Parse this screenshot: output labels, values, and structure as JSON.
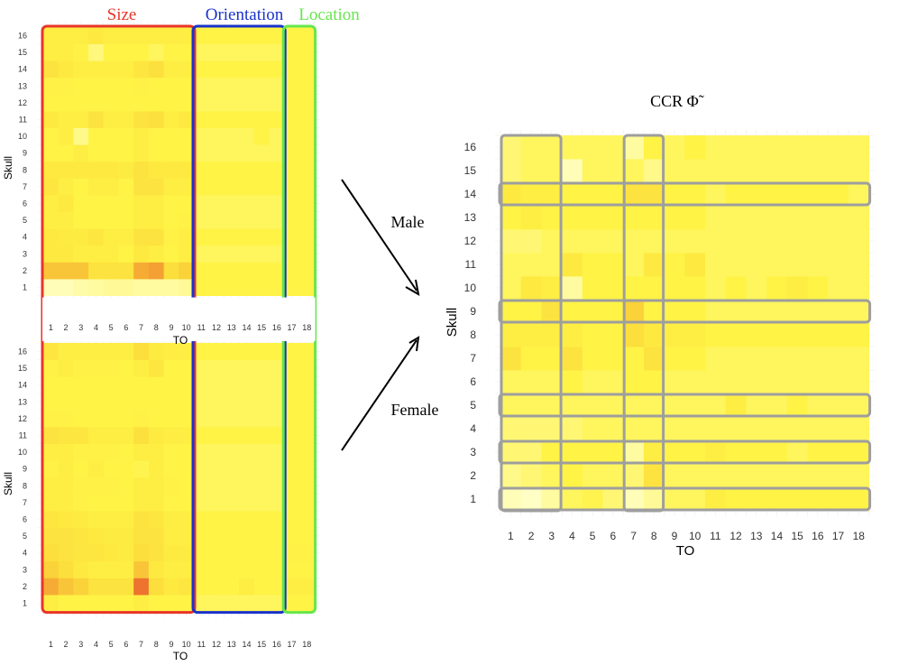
{
  "chart_data": [
    {
      "type": "heatmap",
      "panel": "Male",
      "xlabel": "TO",
      "ylabel": "Skull",
      "x_ticks": [
        "1",
        "2",
        "3",
        "4",
        "5",
        "6",
        "7",
        "8",
        "9",
        "10",
        "11",
        "12",
        "13",
        "14",
        "15",
        "16",
        "17",
        "18"
      ],
      "y_ticks": [
        "1",
        "2",
        "3",
        "4",
        "5",
        "6",
        "7",
        "8",
        "9",
        "10",
        "11",
        "12",
        "13",
        "14",
        "15",
        "16"
      ],
      "groups": [
        {
          "label": "Size",
          "from": 1,
          "to": 10,
          "color": "#e8352a"
        },
        {
          "label": "Orientation",
          "from": 11,
          "to": 16,
          "color": "#1a33cc"
        },
        {
          "label": "Location",
          "from": 17,
          "to": 18,
          "color": "#66e64d"
        }
      ],
      "scale": "0 = pale yellow, 1 = orange-red (estimated)",
      "values": [
        [
          0.05,
          0.05,
          0.08,
          0.1,
          0.12,
          0.12,
          0.1,
          0.1,
          0.1,
          0.12,
          0.3,
          0.3,
          0.3,
          0.3,
          0.3,
          0.3,
          0.3,
          0.3
        ],
        [
          0.6,
          0.6,
          0.6,
          0.45,
          0.45,
          0.45,
          0.7,
          0.75,
          0.5,
          0.55,
          0.3,
          0.3,
          0.3,
          0.3,
          0.3,
          0.3,
          0.3,
          0.3
        ],
        [
          0.4,
          0.4,
          0.35,
          0.35,
          0.35,
          0.3,
          0.4,
          0.35,
          0.3,
          0.35,
          0.25,
          0.25,
          0.25,
          0.25,
          0.25,
          0.25,
          0.3,
          0.3
        ],
        [
          0.4,
          0.38,
          0.38,
          0.42,
          0.35,
          0.35,
          0.45,
          0.45,
          0.32,
          0.35,
          0.3,
          0.3,
          0.3,
          0.3,
          0.3,
          0.3,
          0.3,
          0.3
        ],
        [
          0.35,
          0.35,
          0.3,
          0.3,
          0.3,
          0.3,
          0.35,
          0.35,
          0.3,
          0.32,
          0.25,
          0.25,
          0.25,
          0.25,
          0.25,
          0.25,
          0.3,
          0.3
        ],
        [
          0.35,
          0.4,
          0.3,
          0.3,
          0.3,
          0.3,
          0.35,
          0.35,
          0.3,
          0.3,
          0.25,
          0.25,
          0.25,
          0.25,
          0.25,
          0.25,
          0.3,
          0.3
        ],
        [
          0.42,
          0.35,
          0.3,
          0.35,
          0.35,
          0.3,
          0.45,
          0.45,
          0.35,
          0.35,
          0.3,
          0.3,
          0.3,
          0.3,
          0.3,
          0.3,
          0.3,
          0.3
        ],
        [
          0.4,
          0.4,
          0.4,
          0.4,
          0.4,
          0.38,
          0.45,
          0.4,
          0.4,
          0.4,
          0.3,
          0.3,
          0.3,
          0.3,
          0.3,
          0.3,
          0.3,
          0.3
        ],
        [
          0.3,
          0.3,
          0.35,
          0.3,
          0.3,
          0.3,
          0.35,
          0.3,
          0.3,
          0.3,
          0.25,
          0.25,
          0.25,
          0.25,
          0.25,
          0.25,
          0.3,
          0.3
        ],
        [
          0.3,
          0.35,
          0.15,
          0.3,
          0.3,
          0.3,
          0.35,
          0.3,
          0.3,
          0.3,
          0.25,
          0.25,
          0.25,
          0.25,
          0.3,
          0.25,
          0.3,
          0.3
        ],
        [
          0.4,
          0.35,
          0.35,
          0.45,
          0.35,
          0.35,
          0.45,
          0.48,
          0.35,
          0.4,
          0.3,
          0.3,
          0.3,
          0.3,
          0.3,
          0.3,
          0.3,
          0.3
        ],
        [
          0.3,
          0.3,
          0.3,
          0.3,
          0.3,
          0.3,
          0.3,
          0.3,
          0.3,
          0.3,
          0.25,
          0.25,
          0.25,
          0.25,
          0.25,
          0.25,
          0.3,
          0.3
        ],
        [
          0.32,
          0.32,
          0.3,
          0.3,
          0.3,
          0.3,
          0.32,
          0.3,
          0.3,
          0.3,
          0.25,
          0.25,
          0.25,
          0.25,
          0.25,
          0.25,
          0.3,
          0.3
        ],
        [
          0.45,
          0.4,
          0.35,
          0.35,
          0.35,
          0.35,
          0.42,
          0.48,
          0.35,
          0.35,
          0.3,
          0.3,
          0.3,
          0.3,
          0.3,
          0.3,
          0.3,
          0.3
        ],
        [
          0.35,
          0.35,
          0.32,
          0.18,
          0.3,
          0.3,
          0.3,
          0.25,
          0.3,
          0.3,
          0.25,
          0.25,
          0.25,
          0.25,
          0.25,
          0.25,
          0.3,
          0.3
        ],
        [
          0.35,
          0.35,
          0.35,
          0.4,
          0.35,
          0.35,
          0.35,
          0.35,
          0.35,
          0.35,
          0.3,
          0.3,
          0.3,
          0.3,
          0.3,
          0.3,
          0.3,
          0.3
        ]
      ]
    },
    {
      "type": "heatmap",
      "panel": "Female",
      "xlabel": "TO",
      "ylabel": "Skull",
      "x_ticks": [
        "1",
        "2",
        "3",
        "4",
        "5",
        "6",
        "7",
        "8",
        "9",
        "10",
        "11",
        "12",
        "13",
        "14",
        "15",
        "16",
        "17",
        "18"
      ],
      "y_ticks": [
        "1",
        "2",
        "3",
        "4",
        "5",
        "6",
        "7",
        "8",
        "9",
        "10",
        "11",
        "12",
        "13",
        "14",
        "15",
        "16"
      ],
      "scale": "0 = pale yellow, 1 = orange-red (estimated)",
      "values": [
        [
          0.35,
          0.3,
          0.3,
          0.3,
          0.3,
          0.3,
          0.35,
          0.3,
          0.3,
          0.3,
          0.25,
          0.25,
          0.25,
          0.25,
          0.25,
          0.25,
          0.3,
          0.3
        ],
        [
          0.7,
          0.6,
          0.55,
          0.45,
          0.45,
          0.45,
          0.9,
          0.5,
          0.4,
          0.42,
          0.3,
          0.3,
          0.3,
          0.35,
          0.3,
          0.3,
          0.35,
          0.35
        ],
        [
          0.55,
          0.5,
          0.4,
          0.35,
          0.35,
          0.35,
          0.6,
          0.4,
          0.35,
          0.35,
          0.3,
          0.3,
          0.3,
          0.3,
          0.3,
          0.3,
          0.3,
          0.3
        ],
        [
          0.5,
          0.45,
          0.42,
          0.42,
          0.4,
          0.38,
          0.5,
          0.45,
          0.38,
          0.38,
          0.3,
          0.3,
          0.3,
          0.3,
          0.3,
          0.3,
          0.32,
          0.32
        ],
        [
          0.45,
          0.45,
          0.42,
          0.4,
          0.38,
          0.38,
          0.45,
          0.45,
          0.35,
          0.35,
          0.3,
          0.3,
          0.3,
          0.3,
          0.3,
          0.3,
          0.3,
          0.3
        ],
        [
          0.42,
          0.4,
          0.38,
          0.35,
          0.35,
          0.35,
          0.45,
          0.42,
          0.35,
          0.35,
          0.3,
          0.3,
          0.3,
          0.3,
          0.3,
          0.3,
          0.3,
          0.3
        ],
        [
          0.35,
          0.35,
          0.32,
          0.3,
          0.3,
          0.3,
          0.35,
          0.35,
          0.3,
          0.3,
          0.25,
          0.25,
          0.25,
          0.25,
          0.25,
          0.25,
          0.3,
          0.3
        ],
        [
          0.35,
          0.35,
          0.32,
          0.32,
          0.32,
          0.3,
          0.35,
          0.35,
          0.32,
          0.3,
          0.25,
          0.25,
          0.25,
          0.25,
          0.25,
          0.25,
          0.3,
          0.3
        ],
        [
          0.32,
          0.35,
          0.3,
          0.35,
          0.3,
          0.3,
          0.28,
          0.35,
          0.3,
          0.3,
          0.25,
          0.25,
          0.25,
          0.25,
          0.25,
          0.25,
          0.3,
          0.3
        ],
        [
          0.35,
          0.35,
          0.32,
          0.32,
          0.32,
          0.3,
          0.35,
          0.35,
          0.3,
          0.3,
          0.25,
          0.25,
          0.25,
          0.25,
          0.25,
          0.25,
          0.3,
          0.3
        ],
        [
          0.45,
          0.42,
          0.42,
          0.35,
          0.35,
          0.35,
          0.48,
          0.38,
          0.35,
          0.35,
          0.3,
          0.3,
          0.3,
          0.3,
          0.3,
          0.3,
          0.3,
          0.3
        ],
        [
          0.32,
          0.32,
          0.3,
          0.3,
          0.3,
          0.3,
          0.32,
          0.3,
          0.3,
          0.3,
          0.25,
          0.25,
          0.25,
          0.25,
          0.25,
          0.25,
          0.3,
          0.3
        ],
        [
          0.3,
          0.3,
          0.3,
          0.3,
          0.3,
          0.3,
          0.3,
          0.3,
          0.3,
          0.3,
          0.25,
          0.25,
          0.25,
          0.25,
          0.25,
          0.25,
          0.3,
          0.3
        ],
        [
          0.3,
          0.3,
          0.3,
          0.3,
          0.3,
          0.3,
          0.3,
          0.3,
          0.3,
          0.3,
          0.25,
          0.25,
          0.25,
          0.25,
          0.25,
          0.25,
          0.3,
          0.3
        ],
        [
          0.32,
          0.35,
          0.32,
          0.32,
          0.32,
          0.3,
          0.35,
          0.42,
          0.3,
          0.3,
          0.25,
          0.25,
          0.25,
          0.25,
          0.25,
          0.25,
          0.3,
          0.3
        ],
        [
          0.42,
          0.35,
          0.35,
          0.35,
          0.35,
          0.35,
          0.5,
          0.38,
          0.35,
          0.35,
          0.3,
          0.3,
          0.3,
          0.3,
          0.3,
          0.3,
          0.3,
          0.3
        ]
      ]
    },
    {
      "type": "heatmap",
      "panel": "CCR",
      "title": "CCR Φ̃",
      "xlabel": "TO",
      "ylabel": "Skull",
      "x_ticks": [
        "1",
        "2",
        "3",
        "4",
        "5",
        "6",
        "7",
        "8",
        "9",
        "10",
        "11",
        "12",
        "13",
        "14",
        "15",
        "16",
        "17",
        "18"
      ],
      "y_ticks": [
        "1",
        "2",
        "3",
        "4",
        "5",
        "6",
        "7",
        "8",
        "9",
        "10",
        "11",
        "12",
        "13",
        "14",
        "15",
        "16"
      ],
      "highlight_rows": [
        1,
        3,
        5,
        9,
        14
      ],
      "highlight_cols": [
        [
          1,
          3
        ],
        [
          7,
          8
        ]
      ],
      "scale": "0 = pale yellow, 1 = orange-red (estimated)",
      "values": [
        [
          0.05,
          0.02,
          0.1,
          0.25,
          0.28,
          0.2,
          0.05,
          0.12,
          0.25,
          0.25,
          0.35,
          0.3,
          0.3,
          0.3,
          0.3,
          0.3,
          0.3,
          0.3
        ],
        [
          0.15,
          0.2,
          0.25,
          0.3,
          0.25,
          0.25,
          0.2,
          0.45,
          0.25,
          0.25,
          0.25,
          0.25,
          0.25,
          0.25,
          0.25,
          0.25,
          0.25,
          0.25
        ],
        [
          0.2,
          0.2,
          0.3,
          0.3,
          0.3,
          0.3,
          0.1,
          0.35,
          0.3,
          0.3,
          0.35,
          0.3,
          0.3,
          0.3,
          0.25,
          0.3,
          0.3,
          0.3
        ],
        [
          0.2,
          0.2,
          0.2,
          0.2,
          0.25,
          0.25,
          0.25,
          0.25,
          0.25,
          0.25,
          0.25,
          0.25,
          0.25,
          0.25,
          0.25,
          0.25,
          0.25,
          0.25
        ],
        [
          0.25,
          0.25,
          0.25,
          0.25,
          0.25,
          0.25,
          0.25,
          0.25,
          0.25,
          0.25,
          0.25,
          0.35,
          0.25,
          0.25,
          0.3,
          0.25,
          0.25,
          0.25
        ],
        [
          0.25,
          0.25,
          0.25,
          0.3,
          0.25,
          0.25,
          0.3,
          0.3,
          0.25,
          0.25,
          0.25,
          0.25,
          0.25,
          0.25,
          0.25,
          0.25,
          0.25,
          0.25
        ],
        [
          0.45,
          0.3,
          0.3,
          0.45,
          0.3,
          0.3,
          0.3,
          0.45,
          0.3,
          0.3,
          0.25,
          0.25,
          0.25,
          0.25,
          0.25,
          0.25,
          0.25,
          0.25
        ],
        [
          0.35,
          0.35,
          0.35,
          0.35,
          0.3,
          0.3,
          0.5,
          0.4,
          0.35,
          0.35,
          0.3,
          0.3,
          0.3,
          0.3,
          0.3,
          0.3,
          0.3,
          0.3
        ],
        [
          0.3,
          0.3,
          0.45,
          0.3,
          0.3,
          0.3,
          0.55,
          0.3,
          0.3,
          0.3,
          0.25,
          0.25,
          0.25,
          0.25,
          0.25,
          0.25,
          0.25,
          0.25
        ],
        [
          0.25,
          0.4,
          0.35,
          0.1,
          0.3,
          0.3,
          0.3,
          0.3,
          0.3,
          0.3,
          0.25,
          0.3,
          0.25,
          0.3,
          0.35,
          0.3,
          0.25,
          0.25
        ],
        [
          0.25,
          0.25,
          0.25,
          0.4,
          0.3,
          0.3,
          0.25,
          0.4,
          0.3,
          0.4,
          0.25,
          0.25,
          0.25,
          0.25,
          0.25,
          0.25,
          0.25,
          0.25
        ],
        [
          0.2,
          0.2,
          0.25,
          0.25,
          0.25,
          0.25,
          0.25,
          0.25,
          0.25,
          0.25,
          0.25,
          0.25,
          0.25,
          0.25,
          0.25,
          0.25,
          0.25,
          0.25
        ],
        [
          0.3,
          0.35,
          0.3,
          0.3,
          0.3,
          0.3,
          0.3,
          0.3,
          0.3,
          0.3,
          0.25,
          0.25,
          0.25,
          0.25,
          0.25,
          0.25,
          0.25,
          0.25
        ],
        [
          0.4,
          0.35,
          0.35,
          0.3,
          0.3,
          0.3,
          0.45,
          0.45,
          0.3,
          0.3,
          0.25,
          0.3,
          0.3,
          0.3,
          0.3,
          0.3,
          0.3,
          0.25
        ],
        [
          0.2,
          0.25,
          0.25,
          0.05,
          0.25,
          0.25,
          0.25,
          0.15,
          0.25,
          0.25,
          0.25,
          0.25,
          0.25,
          0.25,
          0.25,
          0.25,
          0.25,
          0.25
        ],
        [
          0.2,
          0.25,
          0.25,
          0.25,
          0.25,
          0.25,
          0.1,
          0.3,
          0.25,
          0.3,
          0.25,
          0.25,
          0.25,
          0.25,
          0.25,
          0.25,
          0.25,
          0.25
        ]
      ]
    }
  ],
  "annotations": {
    "arrow_male_label": "Male",
    "arrow_female_label": "Female"
  },
  "colors": {
    "cell_outline_box": "#9e9e9e",
    "low": "#ffffc8",
    "mid": "#fff33a",
    "high": "#e9552b"
  }
}
